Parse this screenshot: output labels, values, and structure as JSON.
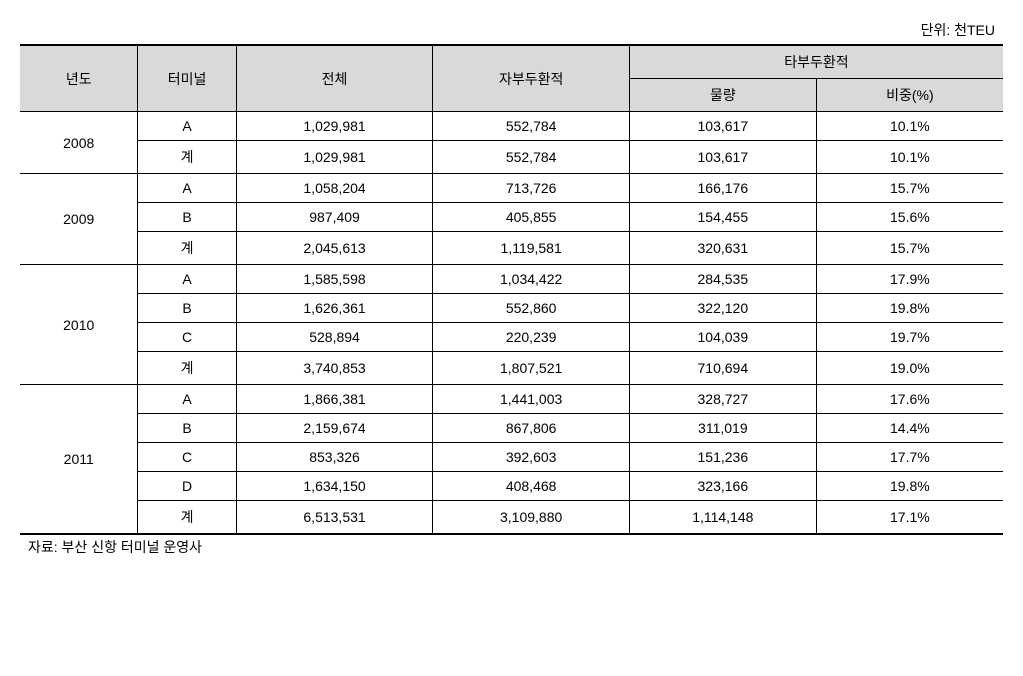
{
  "unit_label": "단위: 천TEU",
  "source_note": "자료: 부산 신항 터미널 운영사",
  "headers": {
    "year": "년도",
    "terminal": "터미널",
    "total": "전체",
    "self_dock": "자부두환적",
    "other_dock": "타부두환적",
    "volume": "물량",
    "ratio": "비중(%)"
  },
  "years": {
    "y2008": "2008",
    "y2009": "2009",
    "y2010": "2010",
    "y2011": "2011"
  },
  "terminals": {
    "A": "A",
    "B": "B",
    "C": "C",
    "D": "D",
    "sum": "계"
  },
  "rows": {
    "r2008A": {
      "total": "1,029,981",
      "self": "552,784",
      "vol": "103,617",
      "pct": "10.1%"
    },
    "r2008sum": {
      "total": "1,029,981",
      "self": "552,784",
      "vol": "103,617",
      "pct": "10.1%"
    },
    "r2009A": {
      "total": "1,058,204",
      "self": "713,726",
      "vol": "166,176",
      "pct": "15.7%"
    },
    "r2009B": {
      "total": "987,409",
      "self": "405,855",
      "vol": "154,455",
      "pct": "15.6%"
    },
    "r2009sum": {
      "total": "2,045,613",
      "self": "1,119,581",
      "vol": "320,631",
      "pct": "15.7%"
    },
    "r2010A": {
      "total": "1,585,598",
      "self": "1,034,422",
      "vol": "284,535",
      "pct": "17.9%"
    },
    "r2010B": {
      "total": "1,626,361",
      "self": "552,860",
      "vol": "322,120",
      "pct": "19.8%"
    },
    "r2010C": {
      "total": "528,894",
      "self": "220,239",
      "vol": "104,039",
      "pct": "19.7%"
    },
    "r2010sum": {
      "total": "3,740,853",
      "self": "1,807,521",
      "vol": "710,694",
      "pct": "19.0%"
    },
    "r2011A": {
      "total": "1,866,381",
      "self": "1,441,003",
      "vol": "328,727",
      "pct": "17.6%"
    },
    "r2011B": {
      "total": "2,159,674",
      "self": "867,806",
      "vol": "311,019",
      "pct": "14.4%"
    },
    "r2011C": {
      "total": "853,326",
      "self": "392,603",
      "vol": "151,236",
      "pct": "17.7%"
    },
    "r2011D": {
      "total": "1,634,150",
      "self": "408,468",
      "vol": "323,166",
      "pct": "19.8%"
    },
    "r2011sum": {
      "total": "6,513,531",
      "self": "3,109,880",
      "vol": "1,114,148",
      "pct": "17.1%"
    }
  }
}
